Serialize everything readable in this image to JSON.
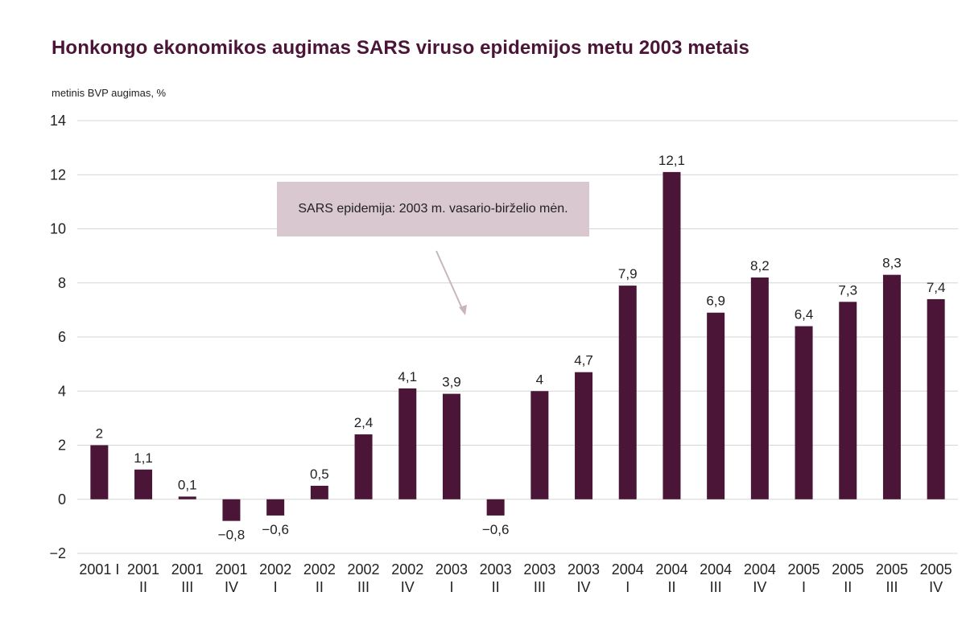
{
  "chart_data": {
    "type": "bar",
    "title": "Honkongo ekonomikos augimas SARS viruso epidemijos metu 2003 metais",
    "ylabel": "metinis BVP augimas, %",
    "xlabel": "",
    "ylim": [
      -2,
      14
    ],
    "yticks": [
      "14",
      "12",
      "10",
      "8",
      "6",
      "4",
      "2",
      "0",
      "−2"
    ],
    "ytick_values": [
      14,
      12,
      10,
      8,
      6,
      4,
      2,
      0,
      -2
    ],
    "grid": true,
    "bar_color": "#4a1537",
    "categories": [
      [
        "2001 I",
        ""
      ],
      [
        "2001",
        "II"
      ],
      [
        "2001",
        "III"
      ],
      [
        "2001",
        "IV"
      ],
      [
        "2002",
        "I"
      ],
      [
        "2002",
        "II"
      ],
      [
        "2002",
        "III"
      ],
      [
        "2002",
        "IV"
      ],
      [
        "2003",
        "I"
      ],
      [
        "2003",
        "II"
      ],
      [
        "2003",
        "III"
      ],
      [
        "2003",
        "IV"
      ],
      [
        "2004",
        "I"
      ],
      [
        "2004",
        "II"
      ],
      [
        "2004",
        "III"
      ],
      [
        "2004",
        "IV"
      ],
      [
        "2005",
        "I"
      ],
      [
        "2005",
        "II"
      ],
      [
        "2005",
        "III"
      ],
      [
        "2005",
        "IV"
      ]
    ],
    "values": [
      2,
      1.1,
      0.1,
      -0.8,
      -0.6,
      0.5,
      2.4,
      4.1,
      3.9,
      -0.6,
      4,
      4.7,
      7.9,
      12.1,
      6.9,
      8.2,
      6.4,
      7.3,
      8.3,
      7.4
    ],
    "data_labels": [
      "2",
      "1,1",
      "0,1",
      "−0,8",
      "−0,6",
      "0,5",
      "2,4",
      "4,1",
      "3,9",
      "−0,6",
      "4",
      "4,7",
      "7,9",
      "12,1",
      "6,9",
      "8,2",
      "6,4",
      "7,3",
      "8,3",
      "7,4"
    ],
    "annotation": {
      "text": "SARS epidemija: 2003 m. vasario-birželio mėn."
    }
  }
}
